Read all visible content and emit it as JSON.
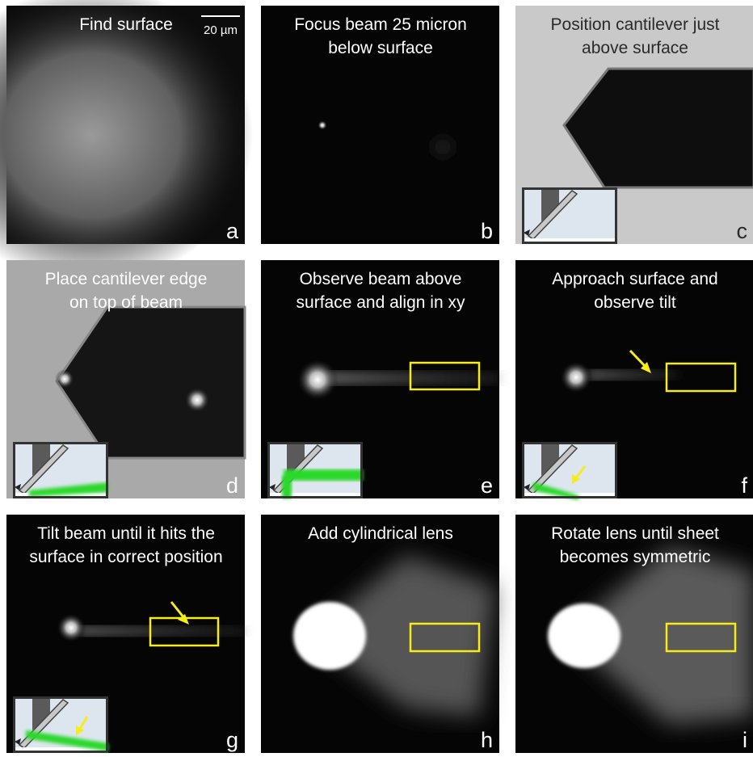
{
  "scale_bar": "20 µm",
  "panels": [
    {
      "caption": [
        "Find surface"
      ],
      "letter": "a"
    },
    {
      "caption": [
        "Focus beam 25 micron",
        "below surface"
      ],
      "letter": "b"
    },
    {
      "caption": [
        "Position cantilever just",
        "above surface"
      ],
      "letter": "c"
    },
    {
      "caption": [
        "Place cantilever edge",
        "on top of beam"
      ],
      "letter": "d"
    },
    {
      "caption": [
        "Observe beam above",
        "surface and align in xy"
      ],
      "letter": "e"
    },
    {
      "caption": [
        "Approach surface and",
        "observe tilt"
      ],
      "letter": "f"
    },
    {
      "caption": [
        "Tilt beam until it hits the",
        "surface in correct position"
      ],
      "letter": "g"
    },
    {
      "caption": [
        "Add cylindrical lens"
      ],
      "letter": "h"
    },
    {
      "caption": [
        "Rotate lens until sheet",
        "becomes symmetric"
      ],
      "letter": "i"
    }
  ]
}
